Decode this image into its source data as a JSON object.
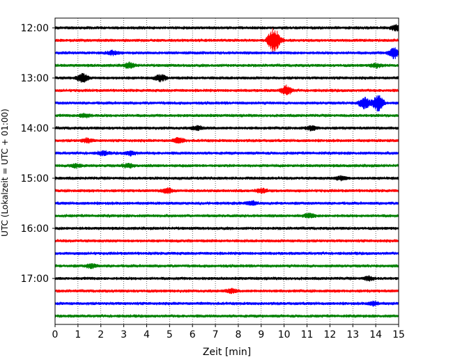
{
  "chart_data": {
    "type": "line",
    "title": "",
    "xlabel": "Zeit  [min]",
    "ylabel": "UTC (Lokalzeit = UTC + 01:00)",
    "xlim": [
      0,
      15
    ],
    "x_ticks": [
      0,
      1,
      2,
      3,
      4,
      5,
      6,
      7,
      8,
      9,
      10,
      11,
      12,
      13,
      14,
      15
    ],
    "y_ticks": [
      "12:00",
      "13:00",
      "14:00",
      "15:00",
      "16:00",
      "17:00"
    ],
    "grid": "vertical dotted lines at each minute",
    "trace_colors": [
      "#000000",
      "#ff0000",
      "#0000ff",
      "#008000"
    ],
    "traces": [
      {
        "time": "12:00",
        "color": "#000000",
        "events": [
          [
            14.9,
            0.4
          ]
        ]
      },
      {
        "time": "12:15",
        "color": "#ff0000",
        "events": [
          [
            9.5,
            1.6
          ],
          [
            9.7,
            0.6
          ]
        ]
      },
      {
        "time": "12:30",
        "color": "#0000ff",
        "events": [
          [
            14.8,
            0.9
          ],
          [
            2.5,
            0.3
          ]
        ]
      },
      {
        "time": "12:45",
        "color": "#008000",
        "events": [
          [
            3.25,
            0.4
          ],
          [
            14.0,
            0.3
          ]
        ]
      },
      {
        "time": "13:00",
        "color": "#000000",
        "events": [
          [
            1.2,
            0.7
          ],
          [
            4.6,
            0.5
          ]
        ]
      },
      {
        "time": "13:15",
        "color": "#ff0000",
        "events": [
          [
            10.1,
            0.7
          ]
        ]
      },
      {
        "time": "13:30",
        "color": "#0000ff",
        "events": [
          [
            13.5,
            0.9
          ],
          [
            14.1,
            1.3
          ]
        ]
      },
      {
        "time": "13:45",
        "color": "#008000",
        "events": [
          [
            1.3,
            0.3
          ]
        ]
      },
      {
        "time": "14:00",
        "color": "#000000",
        "events": [
          [
            6.2,
            0.3
          ],
          [
            11.2,
            0.3
          ]
        ]
      },
      {
        "time": "14:15",
        "color": "#ff0000",
        "events": [
          [
            1.4,
            0.3
          ],
          [
            5.4,
            0.4
          ]
        ]
      },
      {
        "time": "14:30",
        "color": "#0000ff",
        "events": [
          [
            3.3,
            0.3
          ],
          [
            2.1,
            0.3
          ]
        ]
      },
      {
        "time": "14:45",
        "color": "#008000",
        "events": [
          [
            0.9,
            0.3
          ],
          [
            3.2,
            0.3
          ]
        ]
      },
      {
        "time": "15:00",
        "color": "#000000",
        "events": [
          [
            12.5,
            0.3
          ]
        ]
      },
      {
        "time": "15:15",
        "color": "#ff0000",
        "events": [
          [
            4.9,
            0.4
          ],
          [
            9.0,
            0.3
          ]
        ]
      },
      {
        "time": "15:30",
        "color": "#0000ff",
        "events": [
          [
            8.6,
            0.3
          ]
        ]
      },
      {
        "time": "15:45",
        "color": "#008000",
        "events": [
          [
            11.1,
            0.3
          ]
        ]
      },
      {
        "time": "16:00",
        "color": "#000000",
        "events": []
      },
      {
        "time": "16:15",
        "color": "#ff0000",
        "events": []
      },
      {
        "time": "16:30",
        "color": "#0000ff",
        "events": []
      },
      {
        "time": "16:45",
        "color": "#008000",
        "events": [
          [
            1.6,
            0.3
          ]
        ]
      },
      {
        "time": "17:00",
        "color": "#000000",
        "events": [
          [
            13.7,
            0.3
          ]
        ]
      },
      {
        "time": "17:15",
        "color": "#ff0000",
        "events": [
          [
            7.7,
            0.3
          ]
        ]
      },
      {
        "time": "17:30",
        "color": "#0000ff",
        "events": [
          [
            13.9,
            0.3
          ]
        ]
      },
      {
        "time": "17:45",
        "color": "#008000",
        "events": []
      }
    ]
  }
}
